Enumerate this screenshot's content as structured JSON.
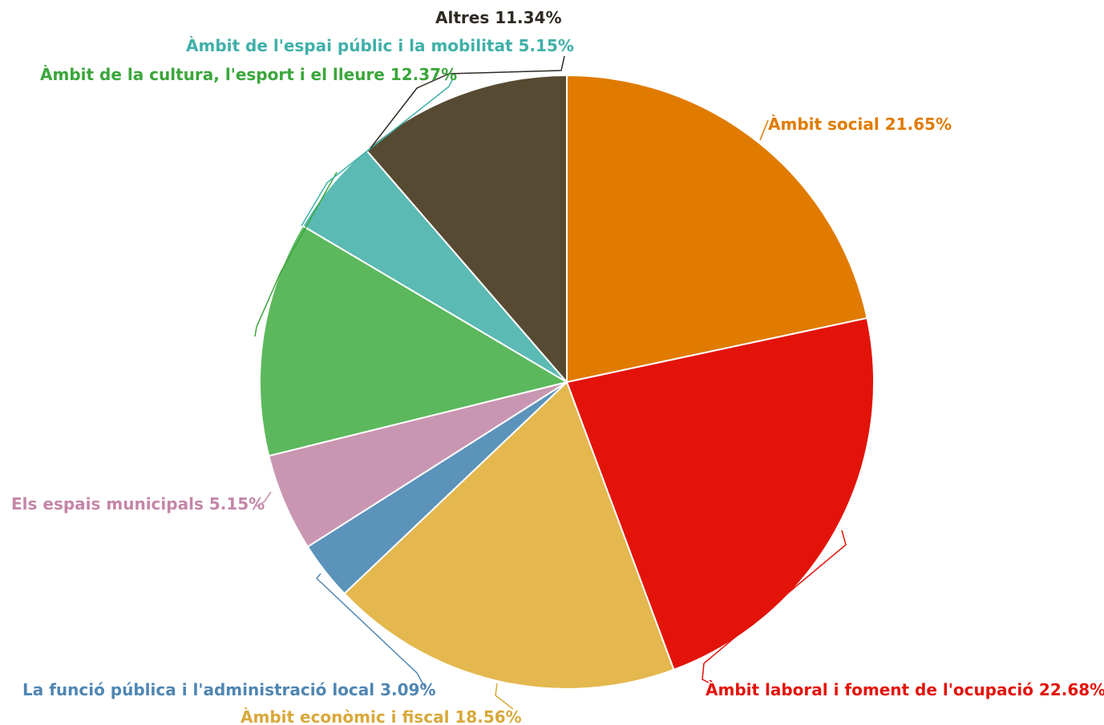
{
  "chart_data": {
    "type": "pie",
    "title": "",
    "slices": [
      {
        "label": "Àmbit social",
        "pct_text": "21.65%",
        "value": 21.65,
        "color": "#e07b00"
      },
      {
        "label": "Àmbit laboral i foment de l'ocupació",
        "pct_text": "22.68%",
        "value": 22.68,
        "color": "#e3130a"
      },
      {
        "label": "Àmbit econòmic i fiscal",
        "pct_text": "18.56%",
        "value": 18.56,
        "color": "#e4b84e"
      },
      {
        "label": "La funció pública i l'administració local",
        "pct_text": "3.09%",
        "value": 3.09,
        "color": "#5b93bb"
      },
      {
        "label": "Els espais municipals",
        "pct_text": "5.15%",
        "value": 5.15,
        "color": "#c996b2"
      },
      {
        "label": "Àmbit de la cultura, l'esport i el lleure",
        "pct_text": "12.37%",
        "value": 12.37,
        "color": "#5cb85c"
      },
      {
        "label": "Àmbit de l'espai públic i la mobilitat",
        "pct_text": "5.15%",
        "value": 5.15,
        "color": "#5bbab3"
      },
      {
        "label": "Altres",
        "pct_text": "11.34%",
        "value": 11.34,
        "color": "#574a32"
      }
    ],
    "label_colors": [
      "#e07b00",
      "#e3130a",
      "#d9a83a",
      "#4f86b3",
      "#c486a8",
      "#3ba63b",
      "#3fb0a8",
      "#2e2a22"
    ],
    "start_angle": "12 o'clock",
    "direction": "clockwise",
    "legend": "none"
  }
}
